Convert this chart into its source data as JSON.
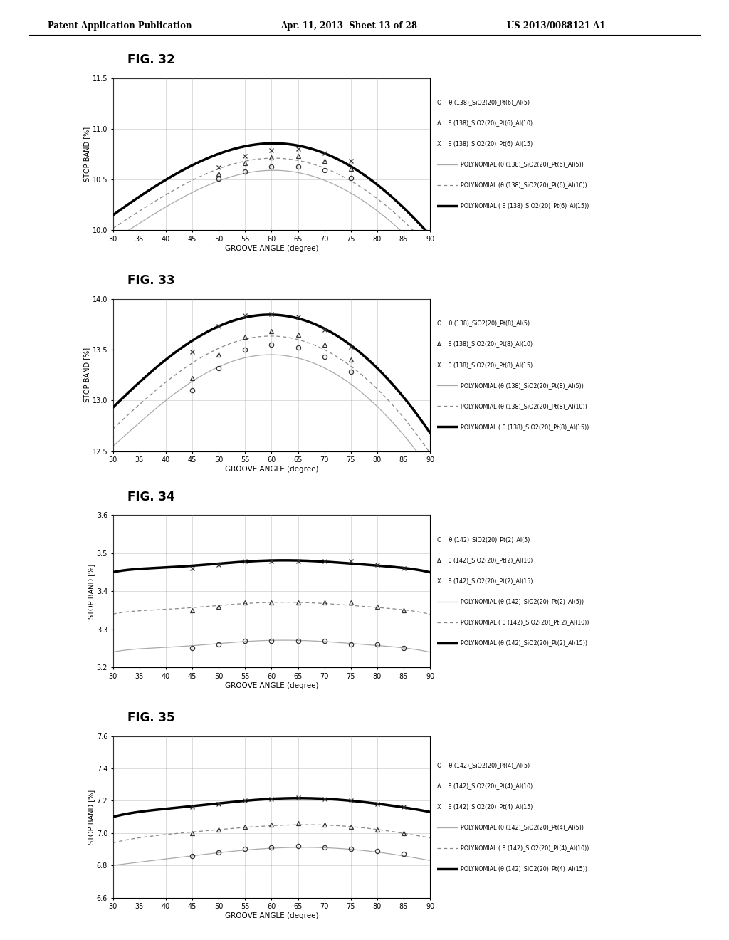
{
  "header_left": "Patent Application Publication",
  "header_mid": "Apr. 11, 2013  Sheet 13 of 28",
  "header_right": "US 2013/0088121 A1",
  "figures": [
    {
      "title": "FIG. 32",
      "ylabel": "STOP BAND [%]",
      "xlabel": "GROOVE ANGLE (degree)",
      "ylim": [
        10.0,
        11.5
      ],
      "yticks": [
        10.0,
        10.5,
        11.0,
        11.5
      ],
      "xlim": [
        30,
        90
      ],
      "xticks": [
        30,
        35,
        40,
        45,
        50,
        55,
        60,
        65,
        70,
        75,
        80,
        85,
        90
      ],
      "legend_lines": [
        "O    θ (138)_SiO2(20)_Pt(6)_Al(5)",
        "Δ    θ (138)_SiO2(20)_Pt(6)_Al(10)",
        "X    θ (138)_SiO2(20)_Pt(6)_Al(15)",
        "POLYNOMIAL (θ (138)_SiO2(20)_Pt(6)_Al(5))",
        "POLYNOMIAL (θ (138)_SiO2(20)_Pt(6)_Al(10))",
        "POLYNOMIAL ( θ (138)_SiO2(20)_Pt(6)_Al(15))"
      ],
      "scatter_x": [
        50,
        55,
        60,
        65,
        70,
        75
      ],
      "scatter_y_circle": [
        10.505,
        10.58,
        10.625,
        10.63,
        10.59,
        10.515
      ],
      "scatter_y_triangle": [
        10.56,
        10.66,
        10.72,
        10.73,
        10.685,
        10.605
      ],
      "scatter_y_cross": [
        10.62,
        10.73,
        10.79,
        10.8,
        10.76,
        10.68
      ],
      "poly_x": [
        30,
        35,
        40,
        45,
        50,
        55,
        60,
        65,
        70,
        75,
        80,
        85,
        90
      ],
      "poly_y_thin": [
        9.9,
        10.07,
        10.23,
        10.37,
        10.49,
        10.56,
        10.59,
        10.57,
        10.49,
        10.37,
        10.19,
        9.97,
        9.7
      ],
      "poly_y_medium": [
        10.02,
        10.19,
        10.35,
        10.49,
        10.61,
        10.68,
        10.71,
        10.69,
        10.61,
        10.49,
        10.31,
        10.09,
        9.82
      ],
      "poly_y_thick": [
        10.15,
        10.33,
        10.5,
        10.64,
        10.75,
        10.83,
        10.86,
        10.83,
        10.76,
        10.63,
        10.45,
        10.22,
        9.95
      ]
    },
    {
      "title": "FIG. 33",
      "ylabel": "STOP BAND [%]",
      "xlabel": "GROOVE ANGLE (degree)",
      "ylim": [
        12.5,
        14.0
      ],
      "yticks": [
        12.5,
        13.0,
        13.5,
        14.0
      ],
      "xlim": [
        30,
        90
      ],
      "xticks": [
        30,
        35,
        40,
        45,
        50,
        55,
        60,
        65,
        70,
        75,
        80,
        85,
        90
      ],
      "legend_lines": [
        "O    θ (138)_SiO2(20)_Pt(8)_Al(5)",
        "Δ    θ (138)_SiO2(20)_Pt(8)_Al(10)",
        "X    θ (138)_SiO2(20)_Pt(8)_Al(15)",
        "POLYNOMIAL (θ (138)_SiO2(20)_Pt(8)_Al(5))",
        "POLYNOMIAL (θ (138)_SiO2(20)_Pt(8)_Al(10))",
        "POLYNOMIAL ( θ (138)_SiO2(20)_Pt(8)_Al(15))"
      ],
      "scatter_x": [
        45,
        50,
        55,
        60,
        65,
        70,
        75
      ],
      "scatter_y_circle": [
        13.1,
        13.32,
        13.5,
        13.55,
        13.52,
        13.43,
        13.28
      ],
      "scatter_y_triangle": [
        13.22,
        13.45,
        13.63,
        13.68,
        13.65,
        13.55,
        13.4
      ],
      "scatter_y_cross": [
        13.48,
        13.73,
        13.84,
        13.85,
        13.82,
        13.7,
        13.53
      ],
      "poly_x": [
        30,
        35,
        40,
        45,
        50,
        55,
        60,
        65,
        70,
        75,
        80,
        85,
        90
      ],
      "poly_y_thin": [
        12.55,
        12.78,
        13.0,
        13.19,
        13.33,
        13.42,
        13.45,
        13.42,
        13.32,
        13.16,
        12.94,
        12.66,
        12.32
      ],
      "poly_y_medium": [
        12.72,
        12.96,
        13.18,
        13.37,
        13.51,
        13.61,
        13.63,
        13.6,
        13.5,
        13.34,
        13.11,
        12.83,
        12.48
      ],
      "poly_y_thick": [
        12.93,
        13.18,
        13.4,
        13.59,
        13.73,
        13.82,
        13.84,
        13.81,
        13.71,
        13.54,
        13.32,
        13.03,
        12.68
      ]
    },
    {
      "title": "FIG. 34",
      "ylabel": "STOP BAND [%]",
      "xlabel": "GROOVE ANGLE (degree)",
      "ylim": [
        3.2,
        3.6
      ],
      "yticks": [
        3.2,
        3.3,
        3.4,
        3.5,
        3.6
      ],
      "xlim": [
        30,
        90
      ],
      "xticks": [
        30,
        35,
        40,
        45,
        50,
        55,
        60,
        65,
        70,
        75,
        80,
        85,
        90
      ],
      "legend_lines": [
        "O    θ (142)_SiO2(20)_Pt(2)_Al(5)",
        "Δ    θ (142)_SiO2(20)_Pt(2)_Al(10)",
        "X    θ (142)_SiO2(20)_Pt(2)_Al(15)",
        "POLYNOMIAL (θ (142)_SiO2(20)_Pt(2)_Al(5))",
        "POLYNOMIAL ( θ (142)_SiO2(20)_Pt(2)_Al(10))",
        "POLYNOMIAL (θ (142)_SiO2(20)_Pt(2)_Al(15))"
      ],
      "scatter_x": [
        45,
        50,
        55,
        60,
        65,
        70,
        75,
        80,
        85
      ],
      "scatter_y_circle": [
        3.25,
        3.26,
        3.27,
        3.27,
        3.27,
        3.27,
        3.26,
        3.26,
        3.25
      ],
      "scatter_y_triangle": [
        3.35,
        3.36,
        3.37,
        3.37,
        3.37,
        3.37,
        3.37,
        3.36,
        3.35
      ],
      "scatter_y_cross": [
        3.46,
        3.47,
        3.48,
        3.48,
        3.48,
        3.48,
        3.48,
        3.47,
        3.46
      ],
      "poly_x": [
        30,
        35,
        40,
        45,
        50,
        55,
        60,
        65,
        70,
        75,
        80,
        85,
        90
      ],
      "poly_y_thin": [
        3.24,
        3.25,
        3.25,
        3.26,
        3.26,
        3.27,
        3.27,
        3.27,
        3.27,
        3.26,
        3.26,
        3.25,
        3.24
      ],
      "poly_y_medium": [
        3.34,
        3.35,
        3.35,
        3.36,
        3.36,
        3.37,
        3.37,
        3.37,
        3.37,
        3.36,
        3.36,
        3.35,
        3.34
      ],
      "poly_y_thick": [
        3.45,
        3.46,
        3.46,
        3.47,
        3.47,
        3.48,
        3.48,
        3.48,
        3.48,
        3.47,
        3.47,
        3.46,
        3.45
      ]
    },
    {
      "title": "FIG. 35",
      "ylabel": "STOP BAND [%]",
      "xlabel": "GROOVE ANGLE (degree)",
      "ylim": [
        6.6,
        7.6
      ],
      "yticks": [
        6.6,
        6.8,
        7.0,
        7.2,
        7.4,
        7.6
      ],
      "xlim": [
        30,
        90
      ],
      "xticks": [
        30,
        35,
        40,
        45,
        50,
        55,
        60,
        65,
        70,
        75,
        80,
        85,
        90
      ],
      "legend_lines": [
        "O    θ (142)_SiO2(20)_Pt(4)_Al(5)",
        "Δ    θ (142)_SiO2(20)_Pt(4)_Al(10)",
        "X    θ (142)_SiO2(20)_Pt(4)_Al(15)",
        "POLYNOMIAL (θ (142)_SiO2(20)_Pt(4)_Al(5))",
        "POLYNOMIAL ( θ (142)_SiO2(20)_Pt(4)_Al(10))",
        "POLYNOMIAL (θ (142)_SiO2(20)_Pt(4)_Al(15))"
      ],
      "scatter_x": [
        45,
        50,
        55,
        60,
        65,
        70,
        75,
        80,
        85
      ],
      "scatter_y_circle": [
        6.86,
        6.88,
        6.9,
        6.91,
        6.92,
        6.91,
        6.9,
        6.89,
        6.87
      ],
      "scatter_y_triangle": [
        7.0,
        7.02,
        7.04,
        7.05,
        7.06,
        7.05,
        7.04,
        7.02,
        7.0
      ],
      "scatter_y_cross": [
        7.16,
        7.18,
        7.2,
        7.21,
        7.22,
        7.21,
        7.2,
        7.18,
        7.16
      ],
      "poly_x": [
        30,
        35,
        40,
        45,
        50,
        55,
        60,
        65,
        70,
        75,
        80,
        85,
        90
      ],
      "poly_y_thin": [
        6.8,
        6.82,
        6.84,
        6.86,
        6.88,
        6.89,
        6.91,
        6.91,
        6.91,
        6.9,
        6.88,
        6.86,
        6.83
      ],
      "poly_y_medium": [
        6.94,
        6.97,
        6.99,
        7.01,
        7.02,
        7.03,
        7.05,
        7.05,
        7.05,
        7.04,
        7.02,
        7.0,
        6.97
      ],
      "poly_y_thick": [
        7.1,
        7.13,
        7.15,
        7.17,
        7.18,
        7.2,
        7.21,
        7.22,
        7.21,
        7.2,
        7.18,
        7.16,
        7.13
      ]
    }
  ],
  "bg_color": "#ffffff",
  "grid_color": "#999999",
  "thin_color": "#aaaaaa",
  "medium_color": "#888888",
  "thick_color": "#000000",
  "marker_color": "#333333"
}
